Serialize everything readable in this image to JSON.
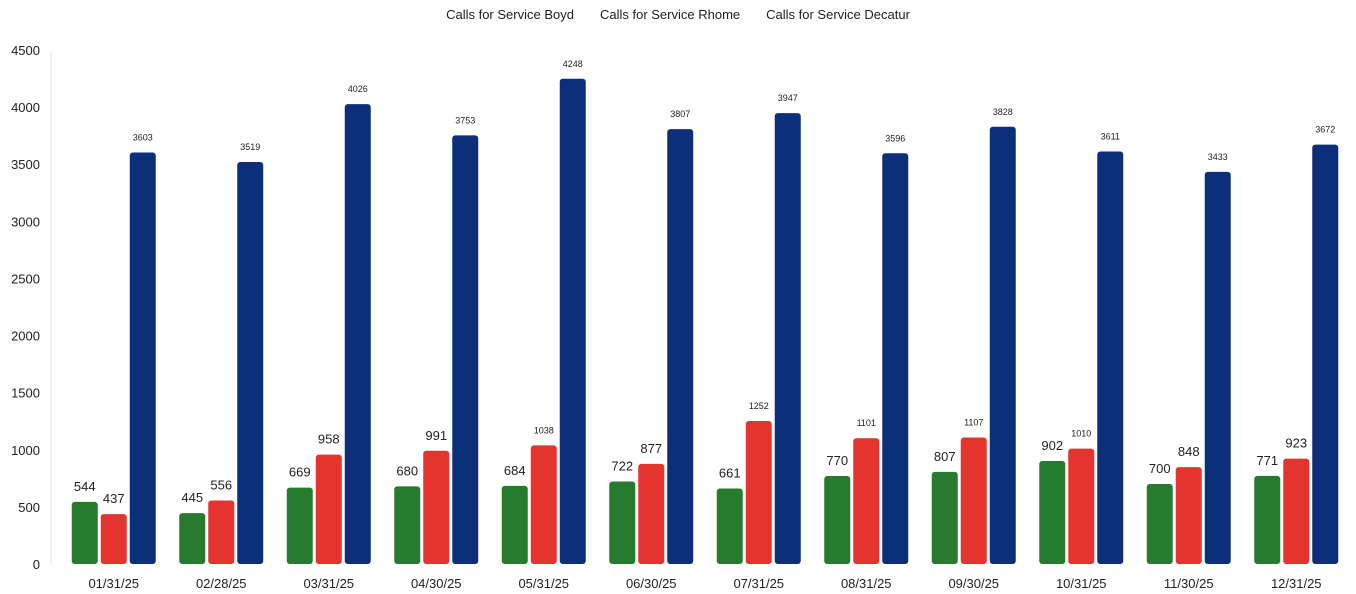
{
  "chart_data": {
    "type": "bar",
    "categories": [
      "01/31/25",
      "02/28/25",
      "03/31/25",
      "04/30/25",
      "05/31/25",
      "06/30/25",
      "07/31/25",
      "08/31/25",
      "09/30/25",
      "10/31/25",
      "11/30/25",
      "12/31/25"
    ],
    "series": [
      {
        "name": "Calls for Service Boyd",
        "color": "#267b2e",
        "values": [
          544,
          445,
          669,
          680,
          684,
          722,
          661,
          770,
          807,
          902,
          700,
          771
        ]
      },
      {
        "name": "Calls for Service Rhome",
        "color": "#e5332d",
        "values": [
          437,
          556,
          958,
          991,
          1038,
          877,
          1252,
          1101,
          1107,
          1010,
          848,
          923
        ]
      },
      {
        "name": "Calls for Service Decatur",
        "color": "#0c2f7a",
        "values": [
          3603,
          3519,
          4026,
          3753,
          4248,
          3807,
          3947,
          3596,
          3828,
          3611,
          3433,
          3672
        ]
      }
    ],
    "yticks": [
      0,
      500,
      1000,
      1500,
      2000,
      2500,
      3000,
      3500,
      4000,
      4500
    ],
    "ylim": [
      0,
      4500
    ],
    "grid": false,
    "legend_position": "top-center"
  }
}
